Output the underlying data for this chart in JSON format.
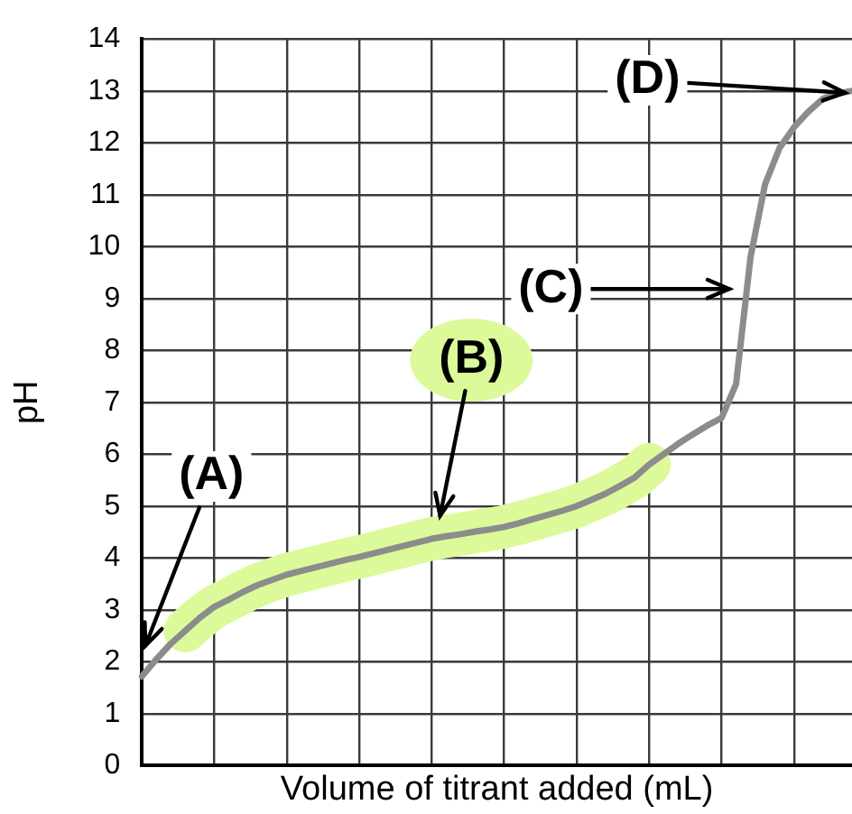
{
  "chart_data": {
    "type": "line",
    "xlabel": "Volume of titrant added (mL)",
    "ylabel": "pH",
    "categories": [
      null,
      null,
      null,
      null,
      null,
      null,
      null,
      null,
      null,
      null,
      null,
      null,
      null,
      null,
      null,
      null,
      null,
      null,
      null,
      null,
      null,
      null,
      null,
      null,
      null,
      null,
      null,
      null,
      null,
      null,
      null,
      null,
      null,
      null,
      null,
      null,
      null,
      null,
      null,
      null,
      null,
      null,
      null,
      null,
      null,
      null,
      null,
      null,
      null,
      null
    ],
    "ylim": [
      0,
      14
    ],
    "yticks": [
      0,
      1,
      2,
      3,
      4,
      5,
      6,
      7,
      8,
      9,
      10,
      11,
      12,
      13,
      14
    ],
    "grid": true,
    "legend": false,
    "tick_labels": "y",
    "marker": "none",
    "line_style": "solid",
    "series": [
      {
        "color": "#dcfa9a",
        "values": [
          null,
          null,
          null,
          2.6,
          2.85,
          3.06,
          3.2,
          3.35,
          3.48,
          3.58,
          3.68,
          3.75,
          3.82,
          3.89,
          3.96,
          4.02,
          4.09,
          4.16,
          4.23,
          4.3,
          4.37,
          4.42,
          4.46,
          4.51,
          4.55,
          4.6,
          4.67,
          4.75,
          4.83,
          4.91,
          5.0,
          5.12,
          5.24,
          5.39,
          5.55,
          5.8,
          null,
          null,
          null,
          null,
          null,
          null,
          null,
          null,
          null,
          null,
          null,
          null,
          null,
          null
        ]
      },
      {
        "color": "#8c8c8c",
        "values": [
          1.72,
          2.05,
          2.35,
          2.6,
          2.85,
          3.06,
          3.2,
          3.35,
          3.48,
          3.58,
          3.68,
          3.75,
          3.82,
          3.89,
          3.96,
          4.02,
          4.09,
          4.16,
          4.23,
          4.3,
          4.37,
          4.42,
          4.46,
          4.51,
          4.55,
          4.6,
          4.67,
          4.75,
          4.83,
          4.91,
          5.0,
          5.12,
          5.24,
          5.39,
          5.55,
          5.8,
          6.0,
          6.2,
          6.38,
          6.55,
          6.7,
          7.35,
          9.8,
          11.2,
          11.9,
          12.3,
          12.6,
          12.85,
          12.95,
          13.0
        ]
      }
    ],
    "annotations": [
      "(A)",
      "(B)",
      "(C)",
      "(D)"
    ]
  }
}
